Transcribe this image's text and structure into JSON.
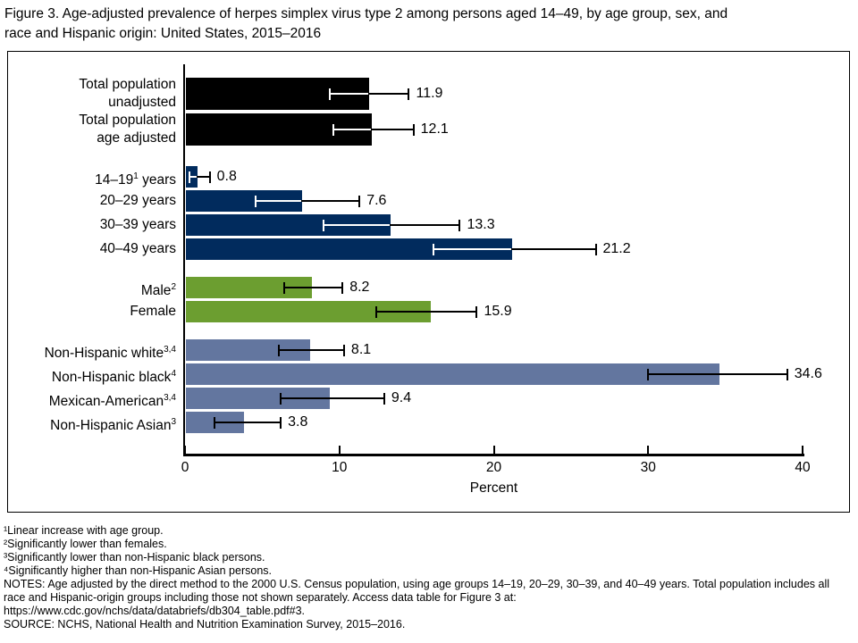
{
  "figure": {
    "title": "Figure 3. Age-adjusted prevalence of herpes simplex virus type 2 among persons aged 14–49, by age group, sex, and\nrace and Hispanic origin: United States, 2015–2016",
    "footnotes": [
      "¹Linear increase with age group.",
      "²Significantly lower than females.",
      "³Significantly lower than non-Hispanic black persons.",
      "⁴Significantly higher than non-Hispanic Asian persons."
    ],
    "notes": "NOTES: Age adjusted by the direct method to the 2000 U.S. Census population, using age groups 14–19, 20–29, 30–39, and 40–49 years. Total population includes all race and Hispanic-origin groups including those not shown separately. Access data table for Figure 3 at:\nhttps://www.cdc.gov/nchs/data/databriefs/db304_table.pdf#3.",
    "source": "SOURCE: NCHS, National Health and Nutrition Examination Survey, 2015–2016."
  },
  "chart_data": {
    "type": "bar",
    "orientation": "horizontal",
    "xlabel": "Percent",
    "xlim": [
      0,
      40
    ],
    "xticks": [
      0,
      10,
      20,
      30,
      40
    ],
    "grid": false,
    "error_bars": true,
    "value_labels": true,
    "groups": [
      {
        "name": "total-population",
        "color": "#000000",
        "ci_inner_color": "#ffffff",
        "bars": [
          {
            "label_lines": [
              "Total population",
              "unadjusted"
            ],
            "value": 11.9,
            "ci": [
              9.4,
              14.5
            ]
          },
          {
            "label_lines": [
              "Total population",
              "age adjusted"
            ],
            "value": 12.1,
            "ci": [
              9.6,
              14.8
            ]
          }
        ]
      },
      {
        "name": "age-group",
        "color": "#012b5d",
        "ci_inner_color": "#ffffff",
        "bars": [
          {
            "label_pre": "14–19",
            "label_sup": "1",
            "label_post": " years",
            "value": 0.8,
            "ci": [
              0.3,
              1.6
            ]
          },
          {
            "label_pre": "20–29 years",
            "value": 7.6,
            "ci": [
              4.6,
              11.3
            ]
          },
          {
            "label_pre": "30–39 years",
            "value": 13.3,
            "ci": [
              9.0,
              17.8
            ]
          },
          {
            "label_pre": "40–49 years",
            "value": 21.2,
            "ci": [
              16.1,
              26.6
            ]
          }
        ]
      },
      {
        "name": "sex",
        "color": "#6c9e30",
        "ci_inner_color": "#000000",
        "bars": [
          {
            "label_pre": "Male",
            "label_sup": "2",
            "value": 8.2,
            "ci": [
              6.4,
              10.2
            ]
          },
          {
            "label_pre": "Female",
            "value": 15.9,
            "ci": [
              12.4,
              18.9
            ]
          }
        ]
      },
      {
        "name": "race-hispanic-origin",
        "color": "#63769f",
        "ci_inner_color": "#000000",
        "bars": [
          {
            "label_pre": "Non-Hispanic white",
            "label_sup": "3,4",
            "value": 8.1,
            "ci": [
              6.1,
              10.3
            ]
          },
          {
            "label_pre": "Non-Hispanic black",
            "label_sup": "4",
            "value": 34.6,
            "ci": [
              30.0,
              39.0
            ]
          },
          {
            "label_pre": "Mexican-American",
            "label_sup": "3,4",
            "value": 9.4,
            "ci": [
              6.2,
              12.9
            ]
          },
          {
            "label_pre": "Non-Hispanic Asian",
            "label_sup": "3",
            "value": 3.8,
            "ci": [
              1.9,
              6.2
            ]
          }
        ]
      }
    ],
    "colors": {
      "total": "#000000",
      "age": "#012b5d",
      "sex": "#6c9e30",
      "race": "#63769f",
      "error_bar_outer": "#000000"
    }
  }
}
